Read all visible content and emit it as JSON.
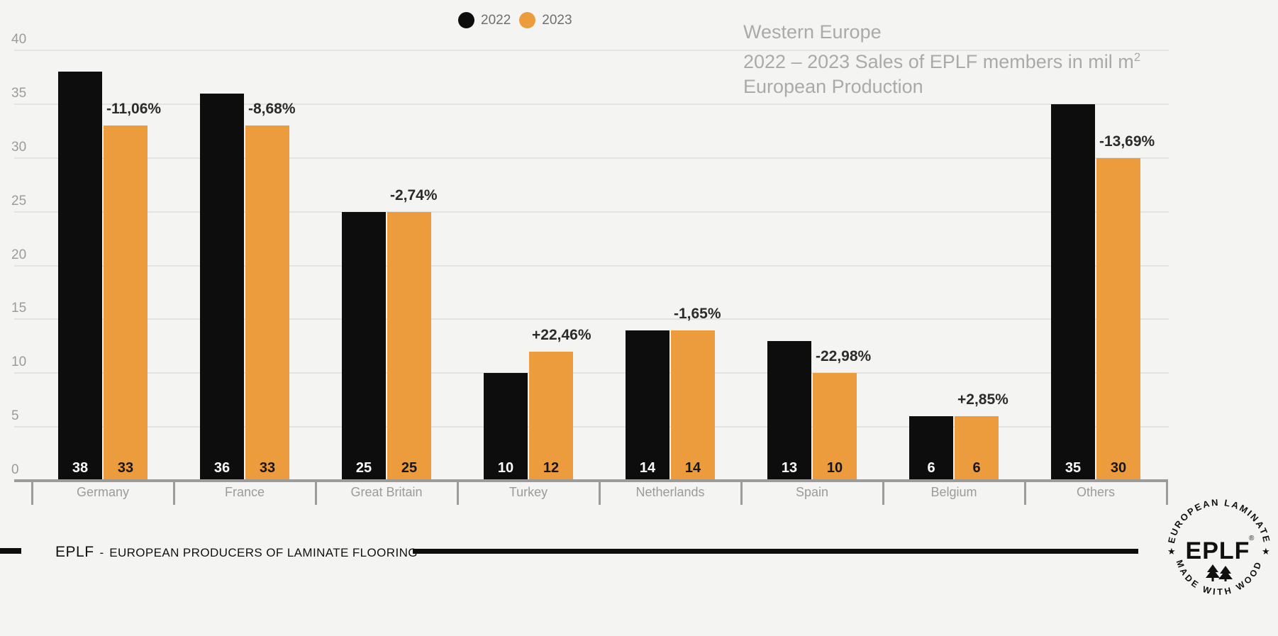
{
  "legend_note": "legend colors mirror chart_data.series colors",
  "title": {
    "line1": "Western Europe",
    "line2": "2022 – 2023 Sales of EPLF members in mil m",
    "line2_sup": "2",
    "line3": "European Production"
  },
  "footer": {
    "brand": "EPLF",
    "separator": "-",
    "text": "EUROPEAN PRODUCERS OF LAMINATE FLOORING"
  },
  "logo": {
    "arc_top": "EUROPEAN LAMINATE",
    "arc_bottom": "MADE WITH WOOD",
    "center": "EPLF",
    "registered": "®",
    "star_left": "★",
    "star_right": "★"
  },
  "colors": {
    "background": "#f4f4f2",
    "bar_2022": "#0d0d0d",
    "bar_2023": "#ec9b3d",
    "gridline": "#e3e3e1",
    "axis": "#9b9b9b",
    "axis_text": "#9b9b9b",
    "title_text": "#aaaaaa",
    "change_text": "#2b2b2b"
  },
  "chart_data": {
    "type": "bar",
    "title": "Western Europe 2022 – 2023 Sales of EPLF members in mil m2 — European Production",
    "categories": [
      "Germany",
      "France",
      "Great Britain",
      "Turkey",
      "Netherlands",
      "Spain",
      "Belgium",
      "Others"
    ],
    "series": [
      {
        "name": "2022",
        "color": "#0d0d0d",
        "values": [
          38,
          36,
          25,
          10,
          14,
          13,
          6,
          35
        ]
      },
      {
        "name": "2023",
        "color": "#ec9b3d",
        "values": [
          33,
          33,
          25,
          12,
          14,
          10,
          6,
          30
        ]
      }
    ],
    "change_labels": [
      "-11,06%",
      "-8,68%",
      "-2,74%",
      "+22,46%",
      "-1,65%",
      "-22,98%",
      "+2,85%",
      "-13,69%"
    ],
    "y_ticks": [
      0,
      5,
      10,
      15,
      20,
      25,
      30,
      35,
      40
    ],
    "ylim": [
      0,
      40
    ],
    "xlabel": "",
    "ylabel": "",
    "grid": "horizontal",
    "legend_position": "top-center",
    "value_labels": "inside-bar-bottom"
  }
}
